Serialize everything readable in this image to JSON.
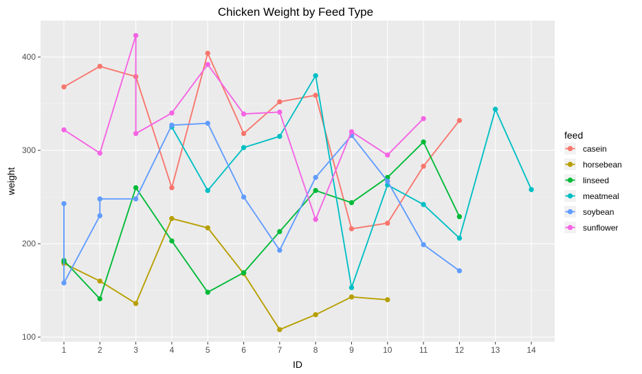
{
  "chart_data": {
    "type": "line",
    "title": "Chicken Weight by Feed Type",
    "xlabel": "ID",
    "ylabel": "weight",
    "xlim": [
      0.35,
      14.65
    ],
    "ylim": [
      95,
      439
    ],
    "xticks": [
      "1",
      "2",
      "3",
      "4",
      "5",
      "6",
      "7",
      "8",
      "9",
      "10",
      "11",
      "12",
      "13",
      "14"
    ],
    "yticks": [
      "100",
      "200",
      "300",
      "400"
    ],
    "grid": true,
    "legend": {
      "title": "feed",
      "position": "right"
    },
    "series": [
      {
        "name": "casein",
        "color": "#F8766D",
        "x": [
          1,
          2,
          3,
          4,
          5,
          6,
          7,
          8,
          9,
          10,
          11,
          12
        ],
        "y": [
          368,
          390,
          379,
          260,
          404,
          318,
          352,
          359,
          216,
          222,
          283,
          332
        ]
      },
      {
        "name": "horsebean",
        "color": "#B79F00",
        "x": [
          1,
          2,
          3,
          4,
          5,
          6,
          7,
          8,
          9,
          10
        ],
        "y": [
          179,
          160,
          136,
          227,
          217,
          168,
          108,
          124,
          143,
          140
        ]
      },
      {
        "name": "linseed",
        "color": "#00BA38",
        "x": [
          1,
          1,
          2,
          3,
          4,
          5,
          6,
          7,
          8,
          9,
          10,
          11,
          12
        ],
        "y": [
          181,
          182,
          141,
          260,
          203,
          148,
          169,
          213,
          257,
          244,
          271,
          309,
          229
        ]
      },
      {
        "name": "meatmeal",
        "color": "#00BFC4",
        "x": [
          4,
          5,
          6,
          7,
          8,
          9,
          10,
          11,
          12,
          13,
          14
        ],
        "y": [
          325,
          257,
          303,
          315,
          380,
          153,
          263,
          242,
          206,
          344,
          258
        ]
      },
      {
        "name": "soybean",
        "color": "#619CFF",
        "x": [
          1,
          1,
          2,
          2,
          3,
          4,
          5,
          6,
          7,
          8,
          9,
          10,
          11,
          12
        ],
        "y": [
          243,
          158,
          230,
          248,
          248,
          327,
          329,
          250,
          193,
          271,
          316,
          267,
          199,
          171
        ]
      },
      {
        "name": "sunflower",
        "color": "#F564E3",
        "x": [
          1,
          2,
          3,
          3,
          4,
          5,
          6,
          7,
          8,
          9,
          10,
          11
        ],
        "y": [
          322,
          297,
          423,
          318,
          340,
          392,
          339,
          341,
          226,
          320,
          295,
          334
        ]
      }
    ]
  }
}
